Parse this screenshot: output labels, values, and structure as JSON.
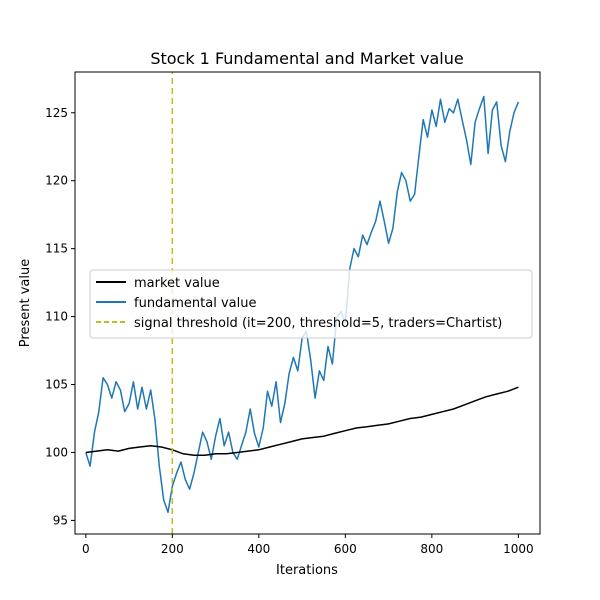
{
  "chart_data": {
    "type": "line",
    "title": "Stock 1 Fundamental and Market value",
    "xlabel": "Iterations",
    "ylabel": "Present value",
    "xlim": [
      -25,
      1050
    ],
    "ylim": [
      94,
      128
    ],
    "xticks": [
      0,
      200,
      400,
      600,
      800,
      1000
    ],
    "yticks": [
      95,
      100,
      105,
      110,
      115,
      120,
      125
    ],
    "grid": false,
    "legend_position": "center-left",
    "series": [
      {
        "name": "market value",
        "color": "#000000",
        "x": [
          0,
          25,
          50,
          75,
          100,
          125,
          150,
          175,
          200,
          225,
          250,
          275,
          300,
          325,
          350,
          375,
          400,
          425,
          450,
          475,
          500,
          525,
          550,
          575,
          600,
          625,
          650,
          675,
          700,
          725,
          750,
          775,
          800,
          825,
          850,
          875,
          900,
          925,
          950,
          975,
          1000
        ],
        "y": [
          100.0,
          100.1,
          100.2,
          100.1,
          100.3,
          100.4,
          100.5,
          100.4,
          100.2,
          99.9,
          99.8,
          99.8,
          99.9,
          99.9,
          100.0,
          100.1,
          100.2,
          100.4,
          100.6,
          100.8,
          101.0,
          101.1,
          101.2,
          101.4,
          101.6,
          101.8,
          101.9,
          102.0,
          102.1,
          102.3,
          102.5,
          102.6,
          102.8,
          103.0,
          103.2,
          103.5,
          103.8,
          104.1,
          104.3,
          104.5,
          104.8
        ]
      },
      {
        "name": "fundamental value",
        "color": "#1f77b4",
        "x": [
          0,
          10,
          20,
          30,
          40,
          50,
          60,
          70,
          80,
          90,
          100,
          110,
          120,
          130,
          140,
          150,
          160,
          170,
          180,
          190,
          200,
          210,
          220,
          230,
          240,
          250,
          260,
          270,
          280,
          290,
          300,
          310,
          320,
          330,
          340,
          350,
          360,
          370,
          380,
          390,
          400,
          410,
          420,
          430,
          440,
          450,
          460,
          470,
          480,
          490,
          500,
          510,
          520,
          530,
          540,
          550,
          560,
          570,
          580,
          590,
          600,
          610,
          620,
          630,
          640,
          650,
          660,
          670,
          680,
          690,
          700,
          710,
          720,
          730,
          740,
          750,
          760,
          770,
          780,
          790,
          800,
          810,
          820,
          830,
          840,
          850,
          860,
          870,
          880,
          890,
          900,
          910,
          920,
          930,
          940,
          950,
          960,
          970,
          980,
          990,
          1000
        ],
        "y": [
          100.0,
          99.0,
          101.5,
          103.0,
          105.5,
          105.0,
          104.0,
          105.2,
          104.6,
          103.0,
          103.6,
          105.2,
          103.2,
          104.8,
          103.2,
          104.6,
          102.4,
          99.0,
          96.5,
          95.6,
          97.5,
          98.5,
          99.3,
          98.0,
          97.3,
          98.5,
          100.0,
          101.5,
          100.8,
          99.5,
          101.2,
          102.5,
          100.5,
          101.5,
          100.0,
          99.5,
          100.5,
          101.5,
          103.2,
          101.4,
          100.4,
          101.8,
          104.5,
          103.4,
          105.2,
          102.2,
          103.6,
          105.8,
          107.0,
          106.0,
          108.4,
          108.9,
          106.8,
          104.0,
          106.0,
          105.3,
          107.8,
          106.5,
          109.9,
          110.4,
          109.5,
          113.5,
          115.0,
          114.4,
          116.0,
          115.3,
          116.2,
          117.0,
          118.5,
          117.0,
          115.4,
          116.5,
          119.2,
          120.6,
          120.0,
          118.5,
          119.0,
          121.8,
          124.5,
          123.2,
          125.2,
          124.0,
          126.0,
          124.3,
          125.3,
          125.0,
          126.0,
          124.5,
          123.0,
          121.2,
          124.3,
          125.3,
          126.2,
          122.0,
          125.2,
          125.8,
          122.6,
          121.4,
          123.6,
          125.0,
          125.8
        ]
      },
      {
        "name": "signal threshold (it=200, threshold=5, traders=Chartist)",
        "color": "#bcbd22",
        "style": "dashed",
        "x": [
          200,
          200
        ],
        "y": [
          94,
          128
        ]
      }
    ]
  }
}
